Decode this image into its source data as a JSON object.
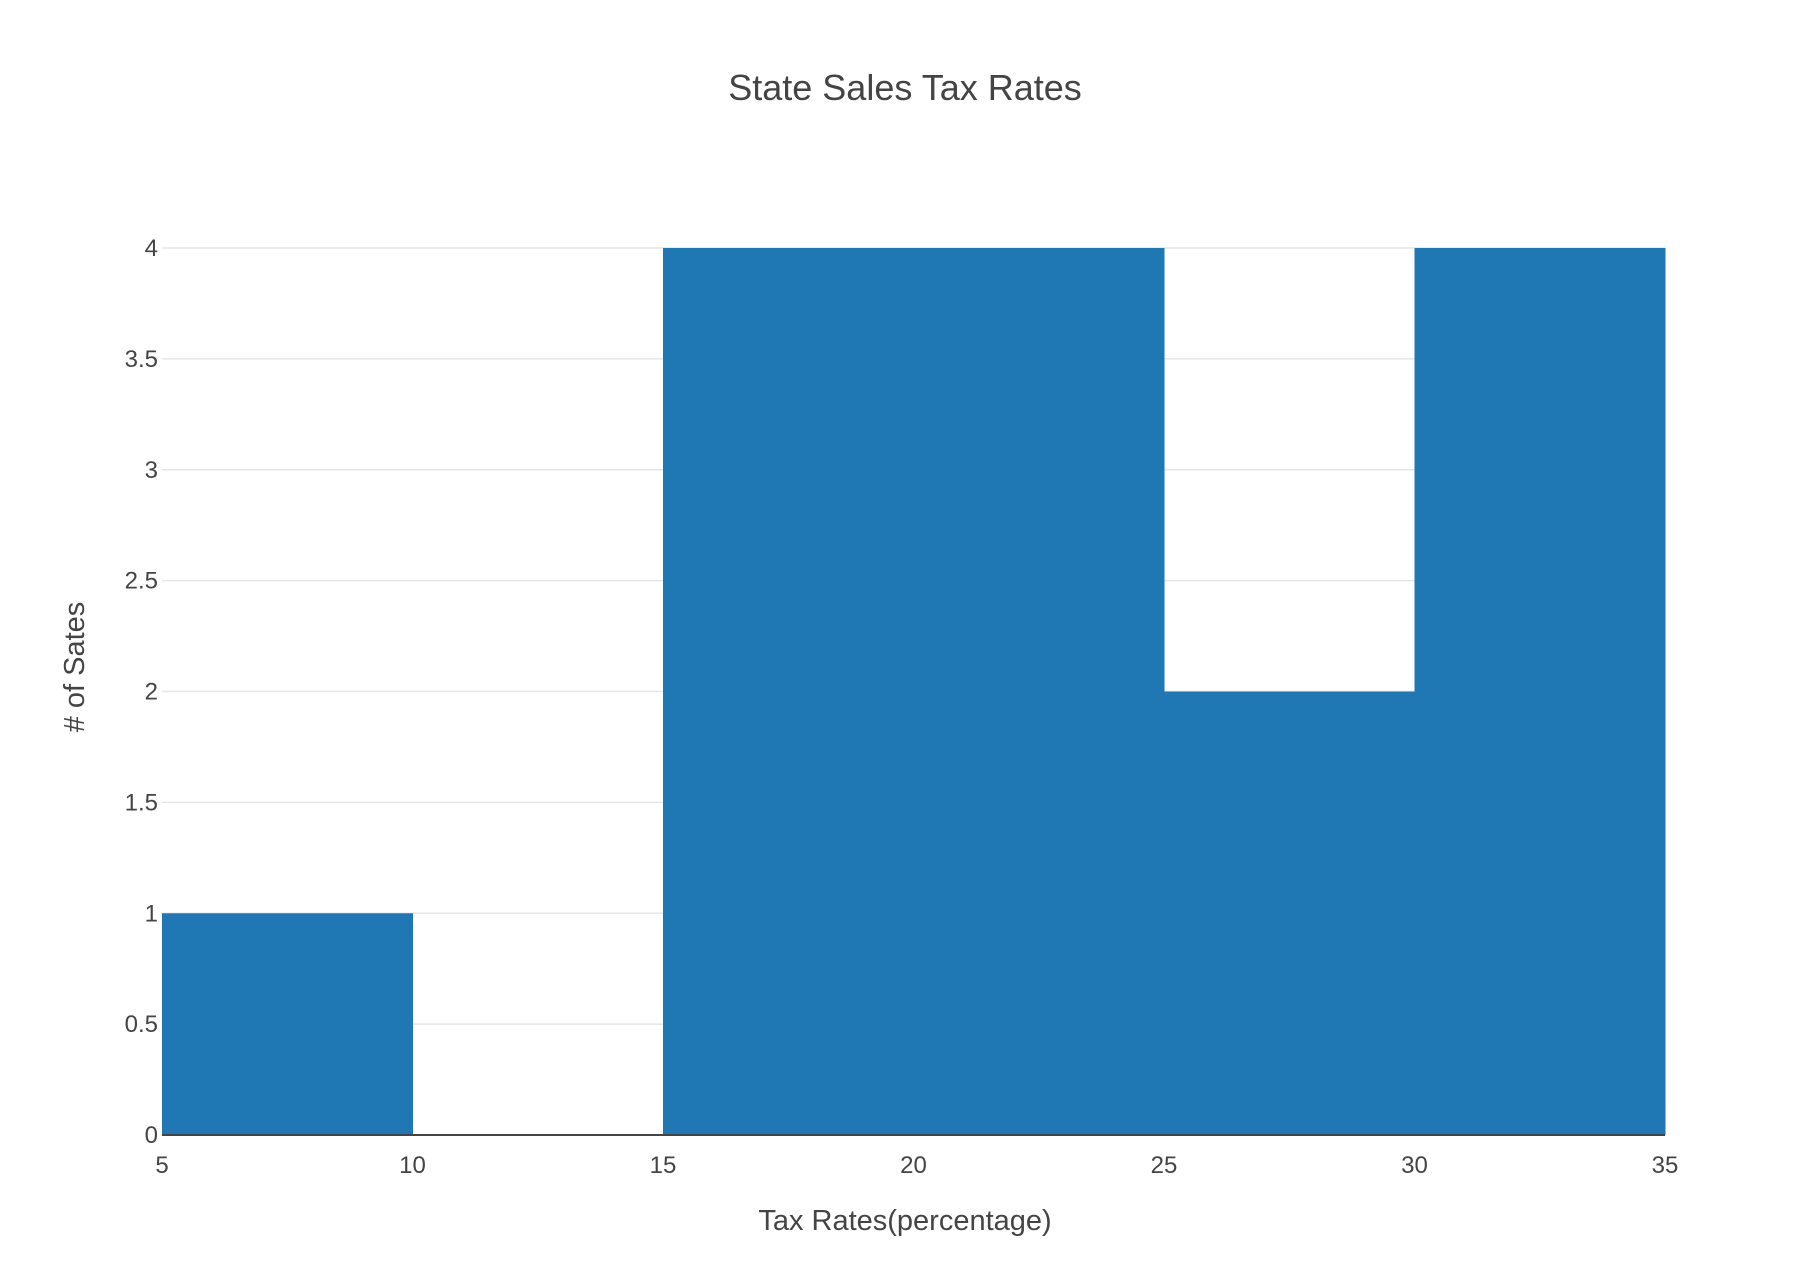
{
  "chart_data": {
    "type": "bar",
    "subtype": "histogram",
    "title": "State Sales Tax Rates",
    "xlabel": "Tax Rates(percentage)",
    "ylabel": "# of Sates",
    "bins": [
      {
        "start": 5,
        "end": 10,
        "count": 1
      },
      {
        "start": 10,
        "end": 15,
        "count": 0
      },
      {
        "start": 15,
        "end": 20,
        "count": 4
      },
      {
        "start": 20,
        "end": 25,
        "count": 4
      },
      {
        "start": 25,
        "end": 30,
        "count": 2
      },
      {
        "start": 30,
        "end": 35,
        "count": 4
      }
    ],
    "xlim": [
      5,
      35
    ],
    "ylim": [
      0,
      4
    ],
    "xticks": [
      "5",
      "10",
      "15",
      "20",
      "25",
      "30",
      "35"
    ],
    "yticks": [
      "0",
      "0.5",
      "1",
      "1.5",
      "2",
      "2.5",
      "3",
      "3.5",
      "4"
    ],
    "grid": true,
    "bar_color": "#1f77b4"
  }
}
